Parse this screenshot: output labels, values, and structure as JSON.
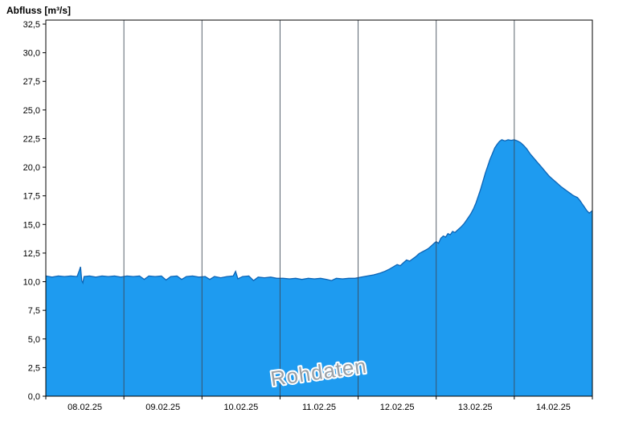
{
  "page": {
    "background": "#ffffff"
  },
  "chart_data": {
    "type": "area",
    "title": "Abfluss [m³/s]",
    "watermark": "Rohdaten",
    "xlabel": "",
    "ylabel": "Abfluss [m³/s]",
    "xlim": [
      0,
      7
    ],
    "ylim": [
      0,
      32.5
    ],
    "grid": "vertical-day-boundaries",
    "legend": "none",
    "x_tick_labels": [
      "08.02.25",
      "09.02.25",
      "10.02.25",
      "11.02.25",
      "12.02.25",
      "13.02.25",
      "14.02.25"
    ],
    "y_tick_labels": [
      "0,0",
      "2,5",
      "5,0",
      "7,5",
      "10,0",
      "12,5",
      "15,0",
      "17,5",
      "20,0",
      "22,5",
      "25,0",
      "27,5",
      "30,0",
      "32,5"
    ],
    "y_ticks": [
      0,
      2.5,
      5,
      7.5,
      10,
      12.5,
      15,
      17.5,
      20,
      22.5,
      25,
      27.5,
      30,
      32.5
    ],
    "day_boundaries": [
      0,
      1,
      2,
      3,
      4,
      5,
      6,
      7
    ],
    "colors": {
      "fill": "#1e9bf0",
      "line": "#0d64b5",
      "grid": "#3c4754",
      "frame": "#000000",
      "axis_text": "#000000",
      "watermark_fill": "#9aa0a6",
      "watermark_halo": "#ffffff"
    },
    "series": [
      {
        "name": "Abfluss Rohdaten",
        "points": [
          [
            0.0,
            10.5
          ],
          [
            0.08,
            10.4
          ],
          [
            0.16,
            10.5
          ],
          [
            0.24,
            10.45
          ],
          [
            0.32,
            10.5
          ],
          [
            0.4,
            10.45
          ],
          [
            0.43,
            11.0
          ],
          [
            0.445,
            11.3
          ],
          [
            0.46,
            10.1
          ],
          [
            0.475,
            9.9
          ],
          [
            0.49,
            10.45
          ],
          [
            0.56,
            10.5
          ],
          [
            0.64,
            10.4
          ],
          [
            0.72,
            10.5
          ],
          [
            0.8,
            10.45
          ],
          [
            0.88,
            10.5
          ],
          [
            0.96,
            10.4
          ],
          [
            1.04,
            10.5
          ],
          [
            1.12,
            10.45
          ],
          [
            1.2,
            10.5
          ],
          [
            1.26,
            10.2
          ],
          [
            1.32,
            10.5
          ],
          [
            1.4,
            10.45
          ],
          [
            1.48,
            10.5
          ],
          [
            1.54,
            10.15
          ],
          [
            1.6,
            10.45
          ],
          [
            1.68,
            10.5
          ],
          [
            1.74,
            10.2
          ],
          [
            1.8,
            10.45
          ],
          [
            1.88,
            10.5
          ],
          [
            1.96,
            10.4
          ],
          [
            2.04,
            10.45
          ],
          [
            2.1,
            10.2
          ],
          [
            2.16,
            10.45
          ],
          [
            2.24,
            10.35
          ],
          [
            2.32,
            10.45
          ],
          [
            2.4,
            10.5
          ],
          [
            2.43,
            10.9
          ],
          [
            2.46,
            10.25
          ],
          [
            2.52,
            10.45
          ],
          [
            2.6,
            10.5
          ],
          [
            2.66,
            10.1
          ],
          [
            2.72,
            10.4
          ],
          [
            2.8,
            10.35
          ],
          [
            2.88,
            10.4
          ],
          [
            2.96,
            10.3
          ],
          [
            3.04,
            10.3
          ],
          [
            3.12,
            10.25
          ],
          [
            3.2,
            10.3
          ],
          [
            3.28,
            10.2
          ],
          [
            3.36,
            10.3
          ],
          [
            3.44,
            10.25
          ],
          [
            3.52,
            10.3
          ],
          [
            3.6,
            10.2
          ],
          [
            3.66,
            10.1
          ],
          [
            3.72,
            10.3
          ],
          [
            3.8,
            10.25
          ],
          [
            3.88,
            10.3
          ],
          [
            3.96,
            10.3
          ],
          [
            4.04,
            10.4
          ],
          [
            4.12,
            10.5
          ],
          [
            4.2,
            10.6
          ],
          [
            4.28,
            10.75
          ],
          [
            4.34,
            10.9
          ],
          [
            4.4,
            11.1
          ],
          [
            4.45,
            11.3
          ],
          [
            4.5,
            11.5
          ],
          [
            4.54,
            11.4
          ],
          [
            4.58,
            11.65
          ],
          [
            4.62,
            11.9
          ],
          [
            4.66,
            11.8
          ],
          [
            4.7,
            12.0
          ],
          [
            4.74,
            12.2
          ],
          [
            4.78,
            12.45
          ],
          [
            4.82,
            12.6
          ],
          [
            4.86,
            12.75
          ],
          [
            4.9,
            12.9
          ],
          [
            4.94,
            13.15
          ],
          [
            4.98,
            13.4
          ],
          [
            5.0,
            13.5
          ],
          [
            5.03,
            13.35
          ],
          [
            5.06,
            13.8
          ],
          [
            5.09,
            14.0
          ],
          [
            5.12,
            13.9
          ],
          [
            5.15,
            14.2
          ],
          [
            5.18,
            14.1
          ],
          [
            5.21,
            14.4
          ],
          [
            5.24,
            14.3
          ],
          [
            5.28,
            14.55
          ],
          [
            5.32,
            14.8
          ],
          [
            5.36,
            15.1
          ],
          [
            5.4,
            15.5
          ],
          [
            5.44,
            15.9
          ],
          [
            5.48,
            16.4
          ],
          [
            5.51,
            16.9
          ],
          [
            5.54,
            17.5
          ],
          [
            5.57,
            18.1
          ],
          [
            5.6,
            18.8
          ],
          [
            5.63,
            19.5
          ],
          [
            5.66,
            20.1
          ],
          [
            5.69,
            20.7
          ],
          [
            5.72,
            21.2
          ],
          [
            5.75,
            21.7
          ],
          [
            5.78,
            22.0
          ],
          [
            5.81,
            22.25
          ],
          [
            5.84,
            22.4
          ],
          [
            5.88,
            22.3
          ],
          [
            5.92,
            22.4
          ],
          [
            5.96,
            22.35
          ],
          [
            6.0,
            22.4
          ],
          [
            6.04,
            22.3
          ],
          [
            6.08,
            22.15
          ],
          [
            6.12,
            21.9
          ],
          [
            6.16,
            21.6
          ],
          [
            6.2,
            21.2
          ],
          [
            6.25,
            20.8
          ],
          [
            6.3,
            20.4
          ],
          [
            6.35,
            20.0
          ],
          [
            6.4,
            19.6
          ],
          [
            6.45,
            19.2
          ],
          [
            6.5,
            18.9
          ],
          [
            6.55,
            18.6
          ],
          [
            6.6,
            18.3
          ],
          [
            6.64,
            18.1
          ],
          [
            6.68,
            17.9
          ],
          [
            6.72,
            17.7
          ],
          [
            6.75,
            17.55
          ],
          [
            6.78,
            17.45
          ],
          [
            6.81,
            17.35
          ],
          [
            6.84,
            17.1
          ],
          [
            6.87,
            16.8
          ],
          [
            6.9,
            16.5
          ],
          [
            6.93,
            16.2
          ],
          [
            6.96,
            16.0
          ],
          [
            6.98,
            16.1
          ],
          [
            7.0,
            16.2
          ]
        ]
      }
    ]
  }
}
